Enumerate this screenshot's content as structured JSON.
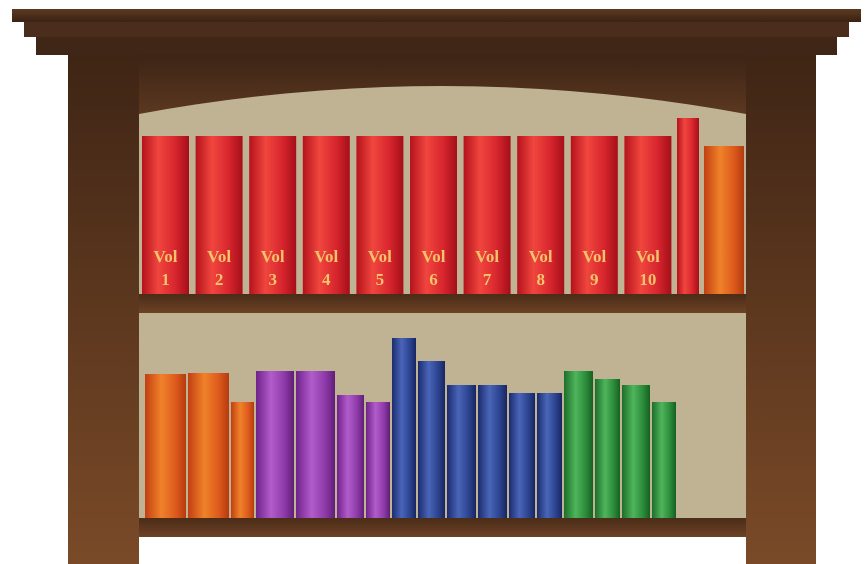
{
  "colors": {
    "wood_dark": "#3b2313",
    "wood_mid": "#5a3620",
    "wood_light": "#7a4a28",
    "wall": "#bfb394",
    "label_gold": "#f4c36a",
    "red": "#d8262e",
    "orange": "#e0561b",
    "purple": "#8a3aa5",
    "blue": "#283f8f",
    "green": "#2a8c3a"
  },
  "top_shelf": {
    "labeled_volumes": [
      {
        "word": "Vol",
        "number": "1"
      },
      {
        "word": "Vol",
        "number": "2"
      },
      {
        "word": "Vol",
        "number": "3"
      },
      {
        "word": "Vol",
        "number": "4"
      },
      {
        "word": "Vol",
        "number": "5"
      },
      {
        "word": "Vol",
        "number": "6"
      },
      {
        "word": "Vol",
        "number": "7"
      },
      {
        "word": "Vol",
        "number": "8"
      },
      {
        "word": "Vol",
        "number": "9"
      },
      {
        "word": "Vol",
        "number": "10"
      }
    ],
    "extra_books": [
      "red",
      "orange"
    ]
  },
  "bottom_shelf": {
    "books": [
      "orange",
      "orange",
      "orange",
      "purple",
      "purple",
      "purple",
      "purple",
      "blue",
      "blue",
      "blue",
      "blue",
      "blue",
      "blue",
      "green",
      "green",
      "green",
      "green"
    ]
  }
}
